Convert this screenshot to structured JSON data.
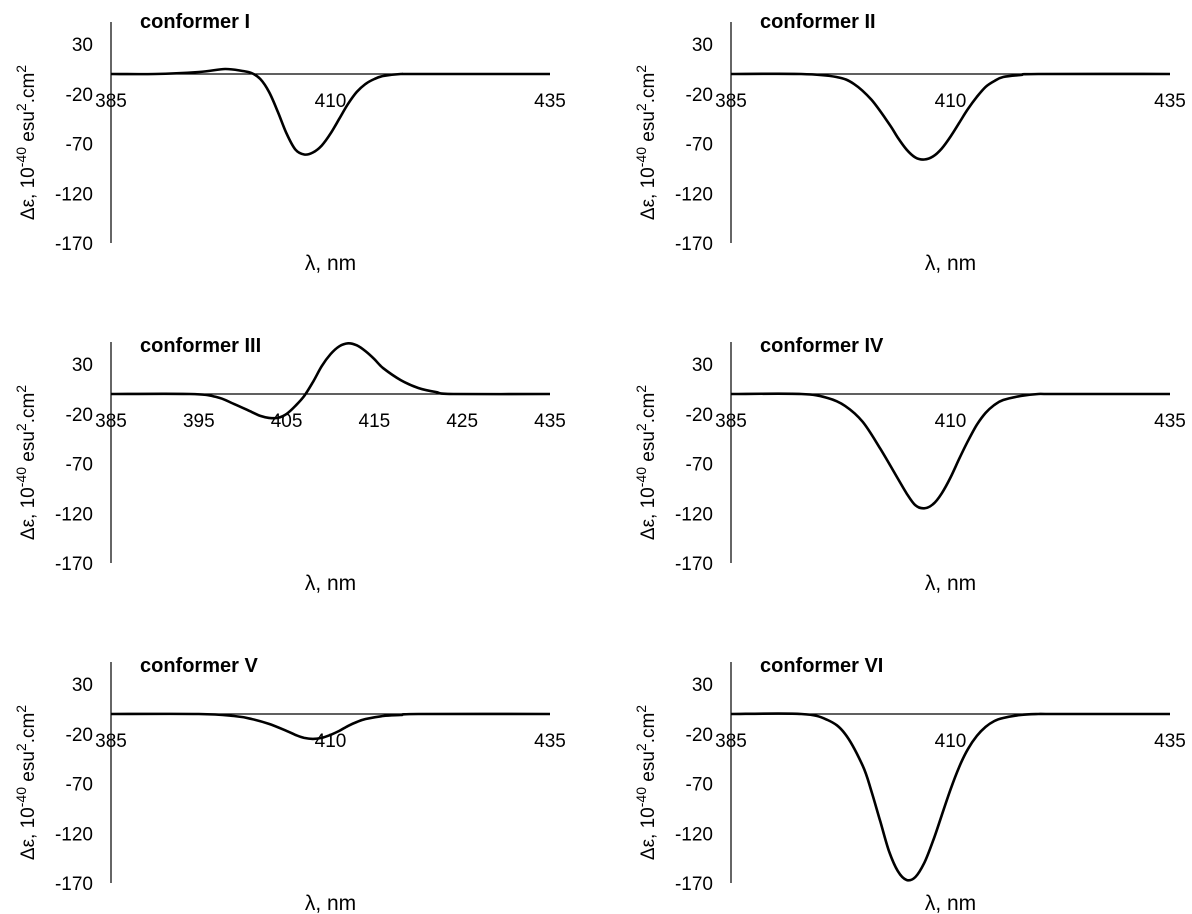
{
  "chart_data": [
    {
      "type": "line",
      "title": "conformer I",
      "xlabel": "λ, nm",
      "ylabel_main": "Δε, 10",
      "ylabel_exp": "-40",
      "ylabel_mid": " esu",
      "ylabel_exp2": "2",
      "ylabel_end": ".cm",
      "ylabel_exp3": "2",
      "xlim": [
        385,
        435
      ],
      "ylim": [
        -170,
        30
      ],
      "x_ticks": [
        "385",
        "410",
        "435"
      ],
      "y_ticks": [
        "30",
        "-20",
        "-70",
        "-120",
        "-170"
      ],
      "series": [
        {
          "x": [
            385,
            390,
            395,
            398,
            400,
            401,
            402,
            403,
            404,
            405,
            406,
            407,
            408,
            409,
            410,
            411,
            412,
            413,
            414,
            415,
            416,
            418,
            420,
            435
          ],
          "y": [
            0,
            0,
            2,
            5,
            3,
            1,
            -5,
            -18,
            -38,
            -60,
            -76,
            -81,
            -79,
            -72,
            -60,
            -45,
            -30,
            -18,
            -10,
            -5,
            -2,
            0,
            0,
            0
          ]
        }
      ]
    },
    {
      "type": "line",
      "title": "conformer II",
      "xlabel": "λ, nm",
      "ylabel_main": "Δε, 10",
      "ylabel_exp": "-40",
      "ylabel_mid": " esu",
      "ylabel_exp2": "2",
      "ylabel_end": ".cm",
      "ylabel_exp3": "2",
      "xlim": [
        385,
        435
      ],
      "ylim": [
        -170,
        30
      ],
      "x_ticks": [
        "385",
        "410",
        "435"
      ],
      "y_ticks": [
        "30",
        "-20",
        "-70",
        "-120",
        "-170"
      ],
      "series": [
        {
          "x": [
            385,
            393,
            397,
            399,
            401,
            403,
            404,
            405,
            406,
            407,
            408,
            409,
            410,
            411,
            412,
            413,
            414,
            415,
            416,
            418,
            420,
            435
          ],
          "y": [
            0,
            0,
            -3,
            -10,
            -26,
            -50,
            -64,
            -76,
            -84,
            -86,
            -83,
            -75,
            -63,
            -49,
            -35,
            -23,
            -13,
            -7,
            -3,
            -1,
            0,
            0
          ]
        }
      ]
    },
    {
      "type": "line",
      "title": "conformer III",
      "xlabel": "λ, nm",
      "ylabel_main": "Δε, 10",
      "ylabel_exp": "-40",
      "ylabel_mid": " esu",
      "ylabel_exp2": "2",
      "ylabel_end": ".cm",
      "ylabel_exp3": "2",
      "xlim": [
        385,
        435
      ],
      "ylim": [
        -170,
        30
      ],
      "x_ticks": [
        "385",
        "395",
        "405",
        "415",
        "425",
        "435"
      ],
      "y_ticks": [
        "30",
        "-20",
        "-70",
        "-120",
        "-170"
      ],
      "series": [
        {
          "x": [
            385,
            394,
            397,
            399,
            401,
            402,
            403,
            404,
            405,
            406,
            407,
            408,
            409,
            410,
            411,
            412,
            413,
            414,
            415,
            416,
            418,
            420,
            422,
            424,
            435
          ],
          "y": [
            0,
            0,
            -3,
            -10,
            -18,
            -22,
            -24,
            -24,
            -20,
            -12,
            -2,
            12,
            28,
            40,
            48,
            51,
            49,
            43,
            35,
            26,
            14,
            6,
            2,
            0,
            0
          ]
        }
      ]
    },
    {
      "type": "line",
      "title": "conformer IV",
      "xlabel": "λ, nm",
      "ylabel_main": "Δε, 10",
      "ylabel_exp": "-40",
      "ylabel_mid": " esu",
      "ylabel_exp2": "2",
      "ylabel_end": ".cm",
      "ylabel_exp3": "2",
      "xlim": [
        385,
        435
      ],
      "ylim": [
        -170,
        30
      ],
      "x_ticks": [
        "385",
        "410",
        "435"
      ],
      "y_ticks": [
        "30",
        "-20",
        "-70",
        "-120",
        "-170"
      ],
      "series": [
        {
          "x": [
            385,
            393,
            396,
            398,
            400,
            402,
            404,
            405,
            406,
            407,
            408,
            409,
            410,
            411,
            412,
            413,
            414,
            415,
            416,
            418,
            420,
            422,
            435
          ],
          "y": [
            0,
            0,
            -4,
            -12,
            -28,
            -55,
            -85,
            -100,
            -112,
            -115,
            -111,
            -100,
            -84,
            -65,
            -47,
            -31,
            -19,
            -11,
            -6,
            -2,
            0,
            0,
            0
          ]
        }
      ]
    },
    {
      "type": "line",
      "title": "conformer V",
      "xlabel": "λ, nm",
      "ylabel_main": "Δε, 10",
      "ylabel_exp": "-40",
      "ylabel_mid": " esu",
      "ylabel_exp2": "2",
      "ylabel_end": ".cm",
      "ylabel_exp3": "2",
      "xlim": [
        385,
        435
      ],
      "ylim": [
        -170,
        30
      ],
      "x_ticks": [
        "385",
        "410",
        "435"
      ],
      "y_ticks": [
        "30",
        "-20",
        "-70",
        "-120",
        "-170"
      ],
      "series": [
        {
          "x": [
            385,
            395,
            399,
            401,
            403,
            405,
            406,
            407,
            408,
            409,
            410,
            411,
            412,
            413,
            414,
            416,
            418,
            420,
            435
          ],
          "y": [
            0,
            0,
            -2,
            -5,
            -10,
            -17,
            -21,
            -24,
            -25,
            -24,
            -21,
            -17,
            -12,
            -8,
            -5,
            -2,
            -1,
            0,
            0
          ]
        }
      ]
    },
    {
      "type": "line",
      "title": "conformer VI",
      "xlabel": "λ, nm",
      "ylabel_main": "Δε, 10",
      "ylabel_exp": "-40",
      "ylabel_mid": " esu",
      "ylabel_exp2": "2",
      "ylabel_end": ".cm",
      "ylabel_exp3": "2",
      "xlim": [
        385,
        435
      ],
      "ylim": [
        -170,
        30
      ],
      "x_ticks": [
        "385",
        "410",
        "435"
      ],
      "y_ticks": [
        "30",
        "-20",
        "-70",
        "-120",
        "-170"
      ],
      "series": [
        {
          "x": [
            385,
            393,
            396,
            398,
            400,
            401,
            402,
            403,
            404,
            405,
            406,
            407,
            408,
            409,
            410,
            411,
            412,
            413,
            414,
            415,
            416,
            418,
            420,
            422,
            435
          ],
          "y": [
            0,
            0,
            -6,
            -20,
            -52,
            -78,
            -108,
            -138,
            -158,
            -167,
            -164,
            -150,
            -128,
            -102,
            -76,
            -53,
            -35,
            -22,
            -13,
            -7,
            -4,
            -1,
            0,
            0,
            0
          ]
        }
      ]
    }
  ]
}
